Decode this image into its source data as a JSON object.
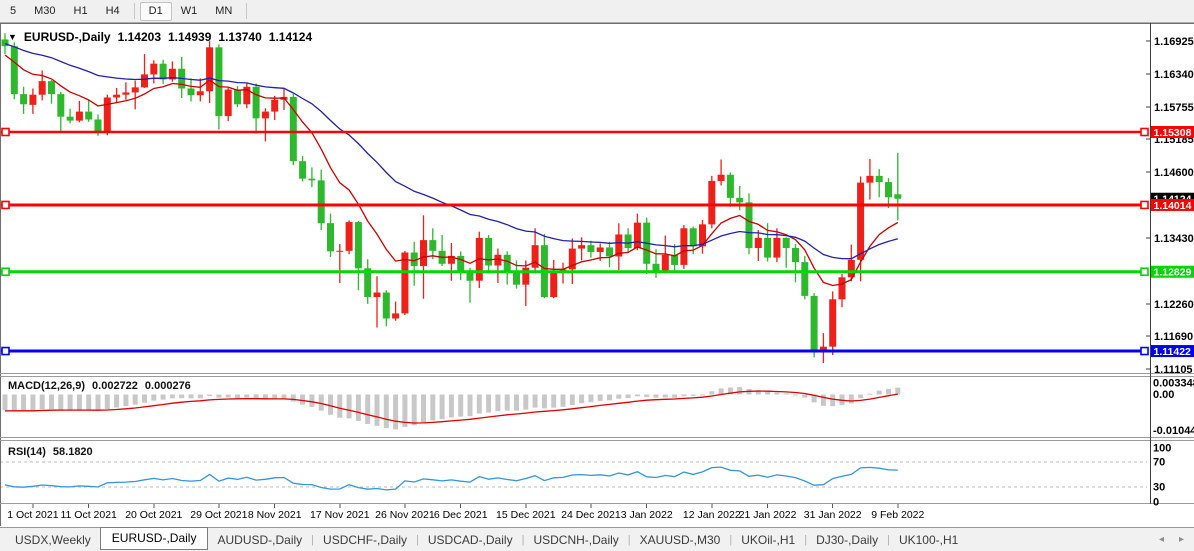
{
  "toolbar": {
    "timeframes": [
      "5",
      "M30",
      "H1",
      "H4",
      "D1",
      "W1",
      "MN"
    ],
    "active": "D1",
    "separators_after": [
      3,
      6
    ]
  },
  "chart": {
    "title": {
      "symbol": "EURUSD-,Daily",
      "open": "1.14203",
      "high": "1.14939",
      "low": "1.13740",
      "close": "1.14124"
    }
  },
  "chart_data": {
    "type": "candlestick",
    "symbol": "EURUSD",
    "timeframe": "Daily",
    "colors": {
      "bull": "#ee2019",
      "bear": "#2eb82e",
      "ma_fast": "#cc0000",
      "ma_slow": "#2121aa",
      "macd_hist": "#c8c8c8",
      "macd_signal": "#e00000",
      "rsi_line": "#3196de",
      "axis_text": "#000000"
    },
    "candles": [
      [
        1.1695,
        1.1706,
        1.1669,
        1.1683
      ],
      [
        1.1683,
        1.169,
        1.1589,
        1.1598
      ],
      [
        1.1598,
        1.1611,
        1.1563,
        1.158
      ],
      [
        1.1579,
        1.1608,
        1.1563,
        1.1597
      ],
      [
        1.1597,
        1.164,
        1.1587,
        1.1621
      ],
      [
        1.1621,
        1.1623,
        1.1581,
        1.1598
      ],
      [
        1.1598,
        1.1602,
        1.1529,
        1.1558
      ],
      [
        1.1558,
        1.1572,
        1.1546,
        1.1551
      ],
      [
        1.1551,
        1.1586,
        1.1548,
        1.1567
      ],
      [
        1.1567,
        1.1588,
        1.1549,
        1.1553
      ],
      [
        1.1553,
        1.1562,
        1.1524,
        1.153
      ],
      [
        1.153,
        1.1597,
        1.1525,
        1.1592
      ],
      [
        1.1592,
        1.1609,
        1.1582,
        1.1597
      ],
      [
        1.1597,
        1.1619,
        1.1588,
        1.1601
      ],
      [
        1.1601,
        1.1622,
        1.1571,
        1.161
      ],
      [
        1.161,
        1.1669,
        1.1609,
        1.1633
      ],
      [
        1.1633,
        1.1658,
        1.1617,
        1.1652
      ],
      [
        1.1652,
        1.1659,
        1.1616,
        1.1624
      ],
      [
        1.1624,
        1.1656,
        1.162,
        1.1643
      ],
      [
        1.1643,
        1.1664,
        1.1591,
        1.1608
      ],
      [
        1.1608,
        1.1626,
        1.1585,
        1.1596
      ],
      [
        1.1596,
        1.1626,
        1.1585,
        1.1603
      ],
      [
        1.1603,
        1.1692,
        1.1582,
        1.1681
      ],
      [
        1.1681,
        1.1686,
        1.1535,
        1.1559
      ],
      [
        1.1559,
        1.1609,
        1.155,
        1.1606
      ],
      [
        1.1606,
        1.1612,
        1.1575,
        1.158
      ],
      [
        1.158,
        1.1617,
        1.1573,
        1.1611
      ],
      [
        1.1611,
        1.1617,
        1.1528,
        1.1555
      ],
      [
        1.1555,
        1.1573,
        1.1514,
        1.1567
      ],
      [
        1.1567,
        1.1595,
        1.1552,
        1.1588
      ],
      [
        1.1588,
        1.1609,
        1.157,
        1.1593
      ],
      [
        1.1593,
        1.1598,
        1.1472,
        1.1479
      ],
      [
        1.1479,
        1.1488,
        1.1443,
        1.1448
      ],
      [
        1.1448,
        1.1468,
        1.1433,
        1.1445
      ],
      [
        1.1445,
        1.1464,
        1.1357,
        1.1369
      ],
      [
        1.1369,
        1.1386,
        1.1309,
        1.1319
      ],
      [
        1.1319,
        1.1332,
        1.1263,
        1.132
      ],
      [
        1.132,
        1.1374,
        1.1314,
        1.1371
      ],
      [
        1.1371,
        1.1373,
        1.125,
        1.1289
      ],
      [
        1.1289,
        1.1305,
        1.1226,
        1.1238
      ],
      [
        1.1238,
        1.1275,
        1.1184,
        1.1246
      ],
      [
        1.1246,
        1.125,
        1.1186,
        1.12
      ],
      [
        1.12,
        1.123,
        1.1196,
        1.1209
      ],
      [
        1.1209,
        1.132,
        1.1206,
        1.1317
      ],
      [
        1.1317,
        1.1336,
        1.1258,
        1.1293
      ],
      [
        1.1293,
        1.1383,
        1.1235,
        1.1339
      ],
      [
        1.1339,
        1.136,
        1.1305,
        1.132
      ],
      [
        1.132,
        1.1348,
        1.1293,
        1.1297
      ],
      [
        1.1297,
        1.1334,
        1.1267,
        1.1311
      ],
      [
        1.1311,
        1.1319,
        1.1268,
        1.1285
      ],
      [
        1.1285,
        1.129,
        1.1228,
        1.1267
      ],
      [
        1.1267,
        1.1354,
        1.1254,
        1.1343
      ],
      [
        1.1343,
        1.1348,
        1.128,
        1.1294
      ],
      [
        1.1294,
        1.1324,
        1.1263,
        1.1313
      ],
      [
        1.1313,
        1.1319,
        1.126,
        1.1284
      ],
      [
        1.1284,
        1.1303,
        1.1253,
        1.126
      ],
      [
        1.126,
        1.1303,
        1.1222,
        1.129
      ],
      [
        1.129,
        1.136,
        1.128,
        1.133
      ],
      [
        1.133,
        1.135,
        1.1236,
        1.1238
      ],
      [
        1.1238,
        1.1304,
        1.1236,
        1.1281
      ],
      [
        1.1281,
        1.1299,
        1.1262,
        1.1287
      ],
      [
        1.1287,
        1.1342,
        1.1261,
        1.1324
      ],
      [
        1.1324,
        1.1344,
        1.1303,
        1.133
      ],
      [
        1.133,
        1.1338,
        1.1308,
        1.1318
      ],
      [
        1.1318,
        1.1333,
        1.1302,
        1.1326
      ],
      [
        1.1326,
        1.1336,
        1.1291,
        1.131
      ],
      [
        1.131,
        1.1369,
        1.1286,
        1.1349
      ],
      [
        1.1349,
        1.136,
        1.1316,
        1.1325
      ],
      [
        1.1325,
        1.1386,
        1.1321,
        1.137
      ],
      [
        1.137,
        1.1379,
        1.1279,
        1.1297
      ],
      [
        1.1297,
        1.1323,
        1.1272,
        1.1285
      ],
      [
        1.1285,
        1.1347,
        1.128,
        1.1313
      ],
      [
        1.1313,
        1.1332,
        1.1285,
        1.1295
      ],
      [
        1.1295,
        1.1366,
        1.1288,
        1.136
      ],
      [
        1.136,
        1.1363,
        1.1314,
        1.1328
      ],
      [
        1.1328,
        1.1375,
        1.1315,
        1.1367
      ],
      [
        1.1367,
        1.1453,
        1.136,
        1.1444
      ],
      [
        1.1444,
        1.1482,
        1.1436,
        1.1455
      ],
      [
        1.1455,
        1.1459,
        1.1398,
        1.1414
      ],
      [
        1.1414,
        1.1435,
        1.1392,
        1.1406
      ],
      [
        1.1406,
        1.1422,
        1.1314,
        1.1325
      ],
      [
        1.1325,
        1.1357,
        1.1302,
        1.1343
      ],
      [
        1.1343,
        1.1369,
        1.1301,
        1.1308
      ],
      [
        1.1308,
        1.136,
        1.13,
        1.1343
      ],
      [
        1.1343,
        1.1344,
        1.129,
        1.1325
      ],
      [
        1.1325,
        1.1332,
        1.1264,
        1.13
      ],
      [
        1.13,
        1.1311,
        1.1234,
        1.124
      ],
      [
        1.124,
        1.1245,
        1.1131,
        1.1144
      ],
      [
        1.1144,
        1.1174,
        1.1121,
        1.115
      ],
      [
        1.115,
        1.1248,
        1.1135,
        1.1234
      ],
      [
        1.1234,
        1.1279,
        1.122,
        1.1273
      ],
      [
        1.1273,
        1.1331,
        1.1266,
        1.1304
      ],
      [
        1.1304,
        1.1452,
        1.1266,
        1.1441
      ],
      [
        1.1441,
        1.1483,
        1.1411,
        1.1453
      ],
      [
        1.1453,
        1.1465,
        1.1415,
        1.1442
      ],
      [
        1.1442,
        1.1449,
        1.1396,
        1.1415
      ],
      [
        1.14203,
        1.14939,
        1.1374,
        1.14124
      ]
    ],
    "date_ticks": [
      {
        "label": "1 Oct 2021",
        "i": 3
      },
      {
        "label": "11 Oct 2021",
        "i": 9
      },
      {
        "label": "20 Oct 2021",
        "i": 16
      },
      {
        "label": "29 Oct 2021",
        "i": 23
      },
      {
        "label": "8 Nov 2021",
        "i": 29
      },
      {
        "label": "17 Nov 2021",
        "i": 36
      },
      {
        "label": "26 Nov 2021",
        "i": 43
      },
      {
        "label": "6 Dec 2021",
        "i": 49
      },
      {
        "label": "15 Dec 2021",
        "i": 56
      },
      {
        "label": "24 Dec 2021",
        "i": 63
      },
      {
        "label": "3 Jan 2022",
        "i": 69
      },
      {
        "label": "12 Jan 2022",
        "i": 76
      },
      {
        "label": "21 Jan 2022",
        "i": 82
      },
      {
        "label": "31 Jan 2022",
        "i": 89
      },
      {
        "label": "9 Feb 2022",
        "i": 96
      }
    ],
    "price_axis": {
      "ticks": [
        {
          "label": "1.16925",
          "price": 1.16925
        },
        {
          "label": "1.16340",
          "price": 1.1634
        },
        {
          "label": "1.15755",
          "price": 1.15755
        },
        {
          "label": "1.15185",
          "price": 1.15185
        },
        {
          "label": "1.14600",
          "price": 1.146
        },
        {
          "label": "1.13430",
          "price": 1.1343
        },
        {
          "label": "1.12260",
          "price": 1.1226
        },
        {
          "label": "1.11690",
          "price": 1.1169
        },
        {
          "label": "1.11105",
          "price": 1.11105
        }
      ],
      "current_price": {
        "label": "1.14124",
        "price": 1.14124,
        "bg": "#000000"
      }
    },
    "hlines": [
      {
        "label": "1.15308",
        "price": 1.15308,
        "color": "#ff0000",
        "width": 2.4
      },
      {
        "label": "1.14014",
        "price": 1.14014,
        "color": "#ff0000",
        "width": 3
      },
      {
        "label": "1.12829",
        "price": 1.12829,
        "color": "#00d600",
        "width": 3
      },
      {
        "label": "1.11422",
        "price": 1.11422,
        "color": "#0000f0",
        "width": 3
      }
    ],
    "ma_overlays": [
      {
        "name": "ma-fast",
        "type": "ema",
        "period": 10,
        "seed": 1.1664,
        "color": "#cc0000"
      },
      {
        "name": "ma-slow",
        "type": "ema",
        "period": 30,
        "seed": 1.1688,
        "color": "#2121aa"
      }
    ],
    "macd": {
      "label": "MACD(12,26,9)",
      "value": "0.002722",
      "signal_value": "0.000276",
      "params": {
        "fast": 12,
        "slow": 26,
        "signal": 9
      },
      "seeds": {
        "ema_fast": 1.164,
        "ema_slow": 1.1693,
        "signal": -0.0048
      },
      "axis_labels": [
        {
          "label": "0.003348",
          "v": 0.003348
        },
        {
          "label": "0.00",
          "v": 0
        },
        {
          "label": "-0.01044",
          "v": -0.01044
        }
      ]
    },
    "rsi": {
      "label": "RSI(14)",
      "value": "58.1820",
      "period": 14,
      "seeds": {
        "gain": 0.0022,
        "loss": 0.0044
      },
      "axis_labels": [
        {
          "label": "100",
          "y": 452.5
        },
        {
          "label": "70",
          "y": 466.5
        },
        {
          "label": "30",
          "y": 491.5
        },
        {
          "label": "0",
          "y": 506.5
        }
      ],
      "dash_levels": [
        70,
        30
      ]
    }
  },
  "tabs": {
    "items": [
      "USDX,Weekly",
      "EURUSD-,Daily",
      "AUDUSD-,Daily",
      "USDCHF-,Daily",
      "USDCAD-,Daily",
      "USDCNH-,Daily",
      "XAUUSD-,M30",
      "UKOil-,H1",
      "DJ30-,Daily",
      "UK100-,H1"
    ],
    "active_index": 1,
    "scroll_left": "◂",
    "scroll_right": "▸"
  }
}
